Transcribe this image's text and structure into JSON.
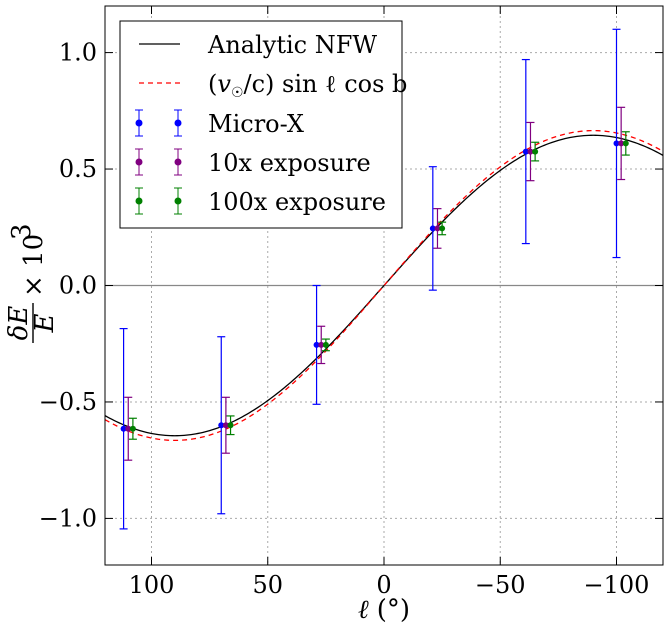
{
  "chart_data": {
    "type": "scatter",
    "xlabel_symbol": "ℓ",
    "xlabel_unit": "(°)",
    "ylabel_fraction_num": "δE",
    "ylabel_fraction_den": "E",
    "ylabel_multiplier": "× 10",
    "ylabel_exponent": "3",
    "xlim": [
      120,
      -120
    ],
    "ylim": [
      -1.2,
      1.2
    ],
    "x_ticks": [
      100,
      50,
      0,
      -50,
      -100
    ],
    "x_tick_labels": [
      "100",
      "50",
      "0",
      "−50",
      "−100"
    ],
    "y_ticks": [
      -1.0,
      -0.5,
      0.0,
      0.5,
      1.0
    ],
    "y_tick_labels": [
      "−1.0",
      "−0.5",
      "0.0",
      "0.5",
      "1.0"
    ],
    "grid": true,
    "legend_position": "top-left",
    "curves": [
      {
        "name": "Analytic NFW",
        "formula": "A sin(l)",
        "amplitude": 0.645,
        "color": "#000000",
        "style": "solid"
      },
      {
        "name": "(v☉/c) sin ℓ cos b",
        "formula": "A sin(l)",
        "amplitude": 0.665,
        "color": "#ff0000",
        "style": "dashed"
      }
    ],
    "series": [
      {
        "name": "Micro-X",
        "color": "#0000ff",
        "offset_deg": 2,
        "x": [
          110,
          68,
          27,
          -23,
          -63,
          -102
        ],
        "y": [
          -0.615,
          -0.6,
          -0.255,
          0.245,
          0.575,
          0.61
        ],
        "err": [
          0.43,
          0.38,
          0.255,
          0.265,
          0.395,
          0.49
        ]
      },
      {
        "name": "10x exposure",
        "color": "#800080",
        "offset_deg": 0,
        "x": [
          110,
          68,
          27,
          -23,
          -63,
          -102
        ],
        "y": [
          -0.615,
          -0.6,
          -0.255,
          0.245,
          0.575,
          0.61
        ],
        "err": [
          0.135,
          0.12,
          0.08,
          0.085,
          0.125,
          0.155
        ]
      },
      {
        "name": "100x exposure",
        "color": "#008000",
        "offset_deg": -2,
        "x": [
          110,
          68,
          27,
          -23,
          -63,
          -102
        ],
        "y": [
          -0.615,
          -0.6,
          -0.255,
          0.245,
          0.575,
          0.61
        ],
        "err": [
          0.045,
          0.04,
          0.025,
          0.027,
          0.04,
          0.05
        ]
      }
    ],
    "legend": {
      "nfw_label": "Analytic NFW",
      "vsun_label_v": "v",
      "vsun_label_sun": "☉",
      "vsun_label_c": "/c) sin ℓ cos b",
      "microx_label": "Micro-X",
      "x10_label": "10x exposure",
      "x100_label": "100x exposure"
    }
  }
}
